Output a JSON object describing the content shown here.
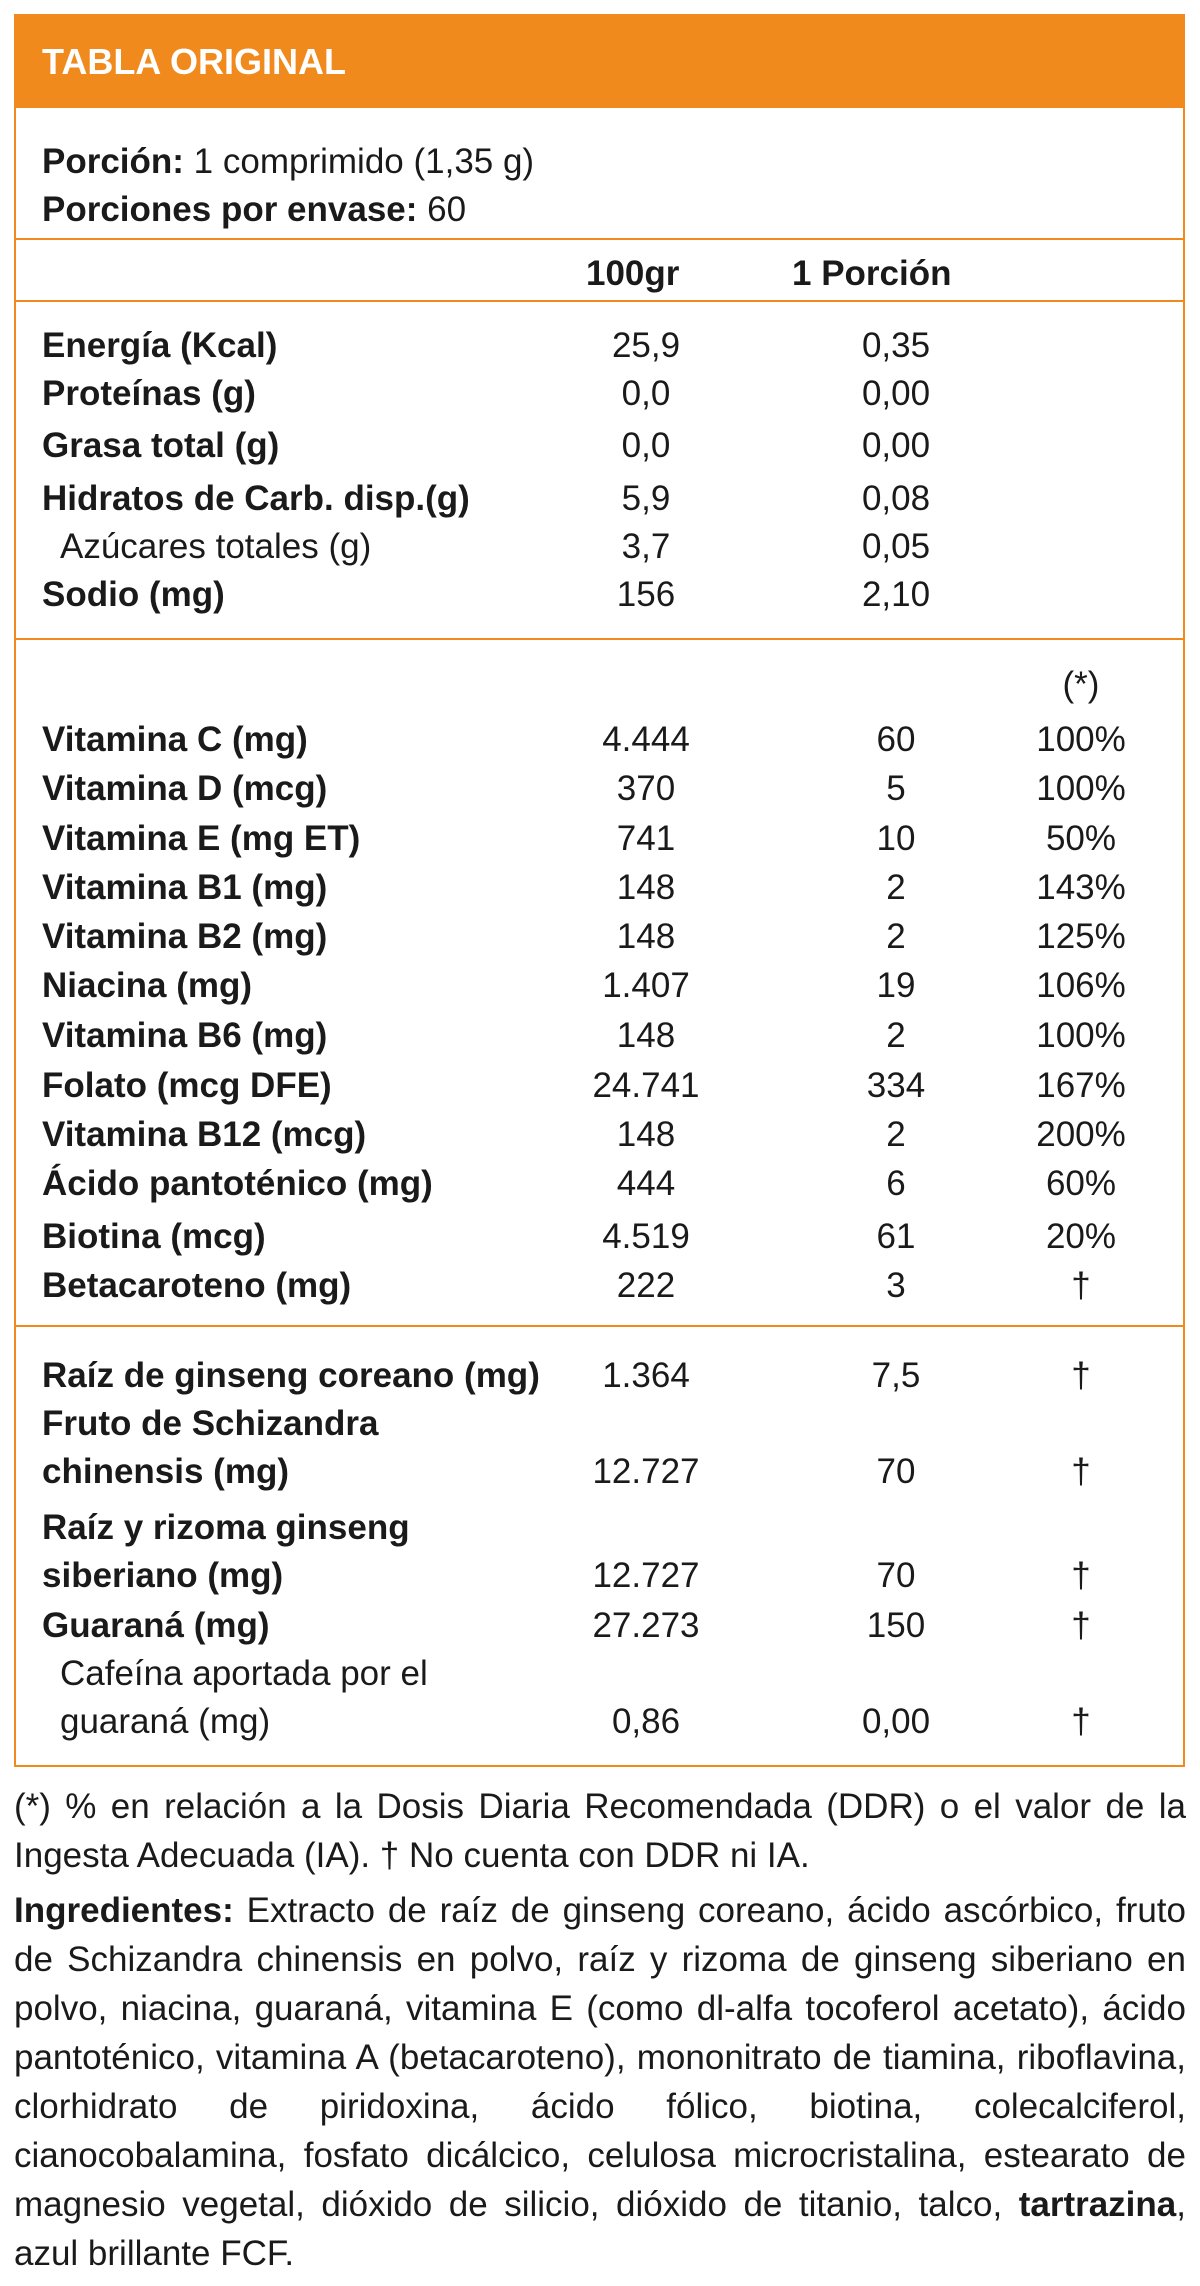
{
  "title": "TABLA ORIGINAL",
  "serving": {
    "portion_label": "Porción:",
    "portion_value": " 1 comprimido (1,35 g)",
    "per_pack_label": "Porciones por envase:",
    "per_pack_value": " 60"
  },
  "headers": {
    "col_100g": "100gr",
    "col_portion": "1 Porción",
    "col_ddr": "(*)"
  },
  "macros": [
    {
      "name": "Energía (Kcal)",
      "v100": "25,9",
      "vp": "0,35"
    },
    {
      "name": "Proteínas (g)",
      "v100": "0,0",
      "vp": "0,00"
    },
    {
      "name": "Grasa total (g)",
      "v100": "0,0",
      "vp": "0,00"
    },
    {
      "name": "Hidratos de Carb. disp.(g)",
      "v100": "5,9",
      "vp": "0,08"
    },
    {
      "name": "Azúcares totales (g)",
      "v100": "3,7",
      "vp": "0,05"
    },
    {
      "name": "Sodio (mg)",
      "v100": "156",
      "vp": "2,10"
    }
  ],
  "vitamins": [
    {
      "name": "Vitamina C (mg)",
      "v100": "4.444",
      "vp": "60",
      "ddr": "100%"
    },
    {
      "name": "Vitamina D (mcg)",
      "v100": "370",
      "vp": "5",
      "ddr": "100%"
    },
    {
      "name": "Vitamina E (mg ET)",
      "v100": "741",
      "vp": "10",
      "ddr": "50%"
    },
    {
      "name": "Vitamina B1 (mg)",
      "v100": "148",
      "vp": "2",
      "ddr": "143%"
    },
    {
      "name": "Vitamina B2 (mg)",
      "v100": "148",
      "vp": "2",
      "ddr": "125%"
    },
    {
      "name": "Niacina (mg)",
      "v100": "1.407",
      "vp": "19",
      "ddr": "106%"
    },
    {
      "name": "Vitamina B6 (mg)",
      "v100": "148",
      "vp": "2",
      "ddr": "100%"
    },
    {
      "name": "Folato (mcg DFE)",
      "v100": "24.741",
      "vp": "334",
      "ddr": "167%"
    },
    {
      "name": "Vitamina B12 (mcg)",
      "v100": "148",
      "vp": "2",
      "ddr": "200%"
    },
    {
      "name": "Ácido pantoténico (mg)",
      "v100": "444",
      "vp": "6",
      "ddr": "60%"
    },
    {
      "name": "Biotina (mcg)",
      "v100": "4.519",
      "vp": "61",
      "ddr": "20%"
    },
    {
      "name": "Betacaroteno (mg)",
      "v100": "222",
      "vp": "3",
      "ddr": "†"
    }
  ],
  "extracts": {
    "ginseng_coreano": {
      "name": "Raíz de ginseng coreano (mg)",
      "v100": "1.364",
      "vp": "7,5",
      "ddr": "†"
    },
    "schizandra": {
      "name1": "Fruto de Schizandra",
      "name2": "chinensis (mg)",
      "v100": "12.727",
      "vp": "70",
      "ddr": "†"
    },
    "ginseng_siberiano": {
      "name1": "Raíz y rizoma ginseng",
      "name2": "siberiano (mg)",
      "v100": "12.727",
      "vp": "70",
      "ddr": "†"
    },
    "guarana": {
      "name": "Guaraná (mg)",
      "v100": "27.273",
      "vp": "150",
      "ddr": "†"
    },
    "cafeina": {
      "name1": "Cafeína aportada por el",
      "name2": "guaraná (mg)",
      "v100": "0,86",
      "vp": "0,00",
      "ddr": "†"
    }
  },
  "footnote": "(*) % en relación a la Dosis Diaria Recomendada (DDR) o el valor de la Ingesta Adecuada (IA). † No cuenta con DDR ni IA.",
  "ingredients": {
    "label": "Ingredientes:",
    "text_before": " Extracto de raíz de ginseng coreano, ácido ascórbico, fruto de Schizandra chinensis en polvo, raíz y rizoma de ginseng siberiano en polvo, niacina, guaraná, vitamina E (como dl-alfa tocoferol acetato), ácido pantoténico, vitamina A (betacaroteno), mononitrato de tiamina, riboflavina, clorhidrato de piridoxina, ácido fólico, biotina, colecalciferol, cianocobalamina, fosfato dicálcico, celulosa microcristalina, estearato de magnesio vegetal, dióxido de silicio, dióxido de titanio, talco, ",
    "highlight": "tartrazina",
    "text_after": ", azul brillante FCF."
  },
  "colors": {
    "accent": "#f08a1c",
    "text": "#1a1a1a",
    "title_text": "#ffffff"
  }
}
